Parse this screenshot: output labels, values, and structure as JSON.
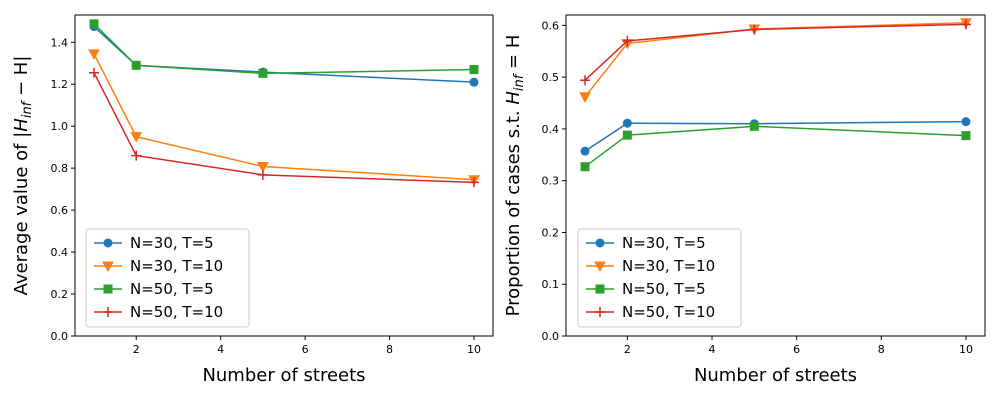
{
  "chart_data": [
    {
      "type": "line",
      "xlabel": "Number of streets",
      "ylabel_prefix": "Average value of |",
      "ylabel_math": "H",
      "ylabel_sub": "inf",
      "ylabel_suffix": " − H|",
      "x": [
        1,
        2,
        5,
        10
      ],
      "xlim": [
        0.55,
        10.45
      ],
      "ylim": [
        0.0,
        1.53
      ],
      "xticks": [
        2,
        4,
        6,
        8,
        10
      ],
      "yticks": [
        0.0,
        0.2,
        0.4,
        0.6,
        0.8,
        1.0,
        1.2,
        1.4
      ],
      "ytick_labels": [
        "0.0",
        "0.2",
        "0.4",
        "0.6",
        "0.8",
        "1.0",
        "1.2",
        "1.4"
      ],
      "legend_position": "lower-left",
      "series": [
        {
          "name": "N=30, T=5",
          "color": "#1f77b4",
          "marker": "circle",
          "values": [
            1.475,
            1.29,
            1.258,
            1.21
          ]
        },
        {
          "name": "N=30, T=10",
          "color": "#ff7f0e",
          "marker": "triangle-down",
          "values": [
            1.345,
            0.95,
            0.808,
            0.745
          ]
        },
        {
          "name": "N=50, T=5",
          "color": "#2ca02c",
          "marker": "square",
          "values": [
            1.488,
            1.29,
            1.252,
            1.27
          ]
        },
        {
          "name": "N=50, T=10",
          "color": "#d62728",
          "marker": "plus",
          "values": [
            1.255,
            0.86,
            0.768,
            0.732
          ]
        }
      ]
    },
    {
      "type": "line",
      "xlabel": "Number of streets",
      "ylabel_prefix": "Proportion of cases s.t. ",
      "ylabel_math": "H",
      "ylabel_sub": "inf",
      "ylabel_suffix": " = H",
      "x": [
        1,
        2,
        5,
        10
      ],
      "xlim": [
        0.55,
        10.45
      ],
      "ylim": [
        0.0,
        0.62
      ],
      "xticks": [
        2,
        4,
        6,
        8,
        10
      ],
      "yticks": [
        0.0,
        0.1,
        0.2,
        0.3,
        0.4,
        0.5,
        0.6
      ],
      "ytick_labels": [
        "0.0",
        "0.1",
        "0.2",
        "0.3",
        "0.4",
        "0.5",
        "0.6"
      ],
      "legend_position": "lower-left",
      "series": [
        {
          "name": "N=30, T=5",
          "color": "#1f77b4",
          "marker": "circle",
          "values": [
            0.357,
            0.411,
            0.41,
            0.414
          ]
        },
        {
          "name": "N=30, T=10",
          "color": "#ff7f0e",
          "marker": "triangle-down",
          "values": [
            0.462,
            0.565,
            0.593,
            0.605
          ]
        },
        {
          "name": "N=50, T=5",
          "color": "#2ca02c",
          "marker": "square",
          "values": [
            0.327,
            0.388,
            0.405,
            0.387
          ]
        },
        {
          "name": "N=50, T=10",
          "color": "#d62728",
          "marker": "plus",
          "values": [
            0.494,
            0.57,
            0.592,
            0.602
          ]
        }
      ]
    }
  ]
}
